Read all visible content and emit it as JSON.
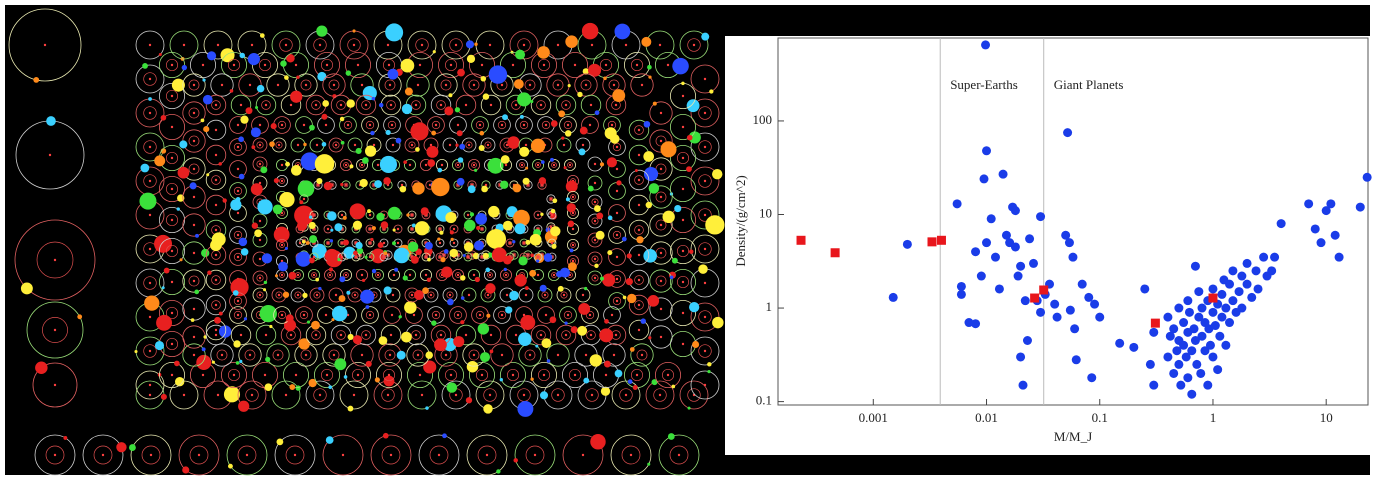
{
  "chart_data": {
    "type": "scatter",
    "xlabel": "M/M_J",
    "ylabel": "Density/(g/cm^2)",
    "log_x": true,
    "log_y": true,
    "xlim": [
      0.000144,
      23.4
    ],
    "ylim": [
      0.092,
      770
    ],
    "xticks": [
      0.001,
      0.01,
      0.1,
      1,
      10
    ],
    "yticks": [
      0.1,
      1,
      10,
      100
    ],
    "vlines": [
      {
        "x": 0.0039,
        "label": "Super-Earths"
      },
      {
        "x": 0.032,
        "label": "Giant Planets"
      }
    ],
    "series": [
      {
        "color": "#1a3ce8",
        "marker": "circle",
        "x": [
          0.0015,
          0.002,
          0.0055,
          0.006,
          0.006,
          0.007,
          0.008,
          0.008,
          0.009,
          0.0098,
          0.0095,
          0.01,
          0.01,
          0.011,
          0.012,
          0.013,
          0.014,
          0.015,
          0.016,
          0.017,
          0.018,
          0.018,
          0.019,
          0.02,
          0.02,
          0.021,
          0.022,
          0.023,
          0.024,
          0.026,
          0.028,
          0.03,
          0.03,
          0.033,
          0.036,
          0.04,
          0.042,
          0.05,
          0.052,
          0.054,
          0.055,
          0.058,
          0.06,
          0.062,
          0.07,
          0.08,
          0.085,
          0.09,
          0.1,
          0.15,
          0.2,
          0.25,
          0.28,
          0.3,
          0.3,
          0.4,
          0.4,
          0.42,
          0.45,
          0.45,
          0.48,
          0.5,
          0.5,
          0.5,
          0.52,
          0.55,
          0.55,
          0.58,
          0.6,
          0.6,
          0.6,
          0.62,
          0.65,
          0.65,
          0.68,
          0.7,
          0.7,
          0.72,
          0.75,
          0.75,
          0.78,
          0.8,
          0.8,
          0.85,
          0.85,
          0.9,
          0.9,
          0.92,
          0.95,
          1.0,
          1.0,
          1.0,
          1.05,
          1.1,
          1.1,
          1.15,
          1.2,
          1.2,
          1.25,
          1.3,
          1.3,
          1.4,
          1.4,
          1.5,
          1.5,
          1.6,
          1.7,
          1.8,
          1.8,
          2.0,
          2.0,
          2.2,
          2.4,
          2.5,
          2.8,
          3.0,
          3.3,
          3.5,
          4,
          7,
          8,
          9,
          10,
          11,
          12,
          13,
          20,
          23
        ],
        "y": [
          1.3,
          4.8,
          13,
          1.7,
          1.4,
          0.7,
          0.68,
          4.0,
          2.2,
          650,
          24,
          48,
          5,
          9,
          3.5,
          1.6,
          27,
          6,
          5,
          12,
          11,
          4.5,
          2.2,
          0.3,
          2.8,
          0.15,
          1.2,
          0.45,
          5.5,
          3,
          1.2,
          0.9,
          9.5,
          1.4,
          1.8,
          1.1,
          0.8,
          6,
          75,
          5,
          0.95,
          3.5,
          0.6,
          0.28,
          1.8,
          1.3,
          0.18,
          1.1,
          0.8,
          0.42,
          0.38,
          1.6,
          0.25,
          0.15,
          0.55,
          0.8,
          0.3,
          0.5,
          0.2,
          0.6,
          0.35,
          1.0,
          0.45,
          0.25,
          0.15,
          0.7,
          0.4,
          0.3,
          1.2,
          0.55,
          0.18,
          0.9,
          0.35,
          0.12,
          0.6,
          2.8,
          0.45,
          0.25,
          0.8,
          1.5,
          0.2,
          0.5,
          1.0,
          0.35,
          0.7,
          1.2,
          0.15,
          0.6,
          0.4,
          0.9,
          1.6,
          0.3,
          0.65,
          1.1,
          0.22,
          0.5,
          1.4,
          0.8,
          2.0,
          0.4,
          1.0,
          1.8,
          0.7,
          1.2,
          2.5,
          0.9,
          1.5,
          2.2,
          1.0,
          1.8,
          3.0,
          1.3,
          2.5,
          1.6,
          3.5,
          2.2,
          2.5,
          3.5,
          8,
          13,
          7,
          5,
          11,
          13,
          6,
          3.5,
          12,
          25
        ]
      },
      {
        "color": "#e8161c",
        "marker": "square",
        "x": [
          0.00023,
          0.00046,
          0.0033,
          0.004,
          0.0266,
          0.032,
          0.31,
          1.0
        ],
        "y": [
          5.3,
          3.9,
          5.1,
          5.3,
          1.28,
          1.56,
          0.69,
          1.28
        ]
      }
    ]
  }
}
